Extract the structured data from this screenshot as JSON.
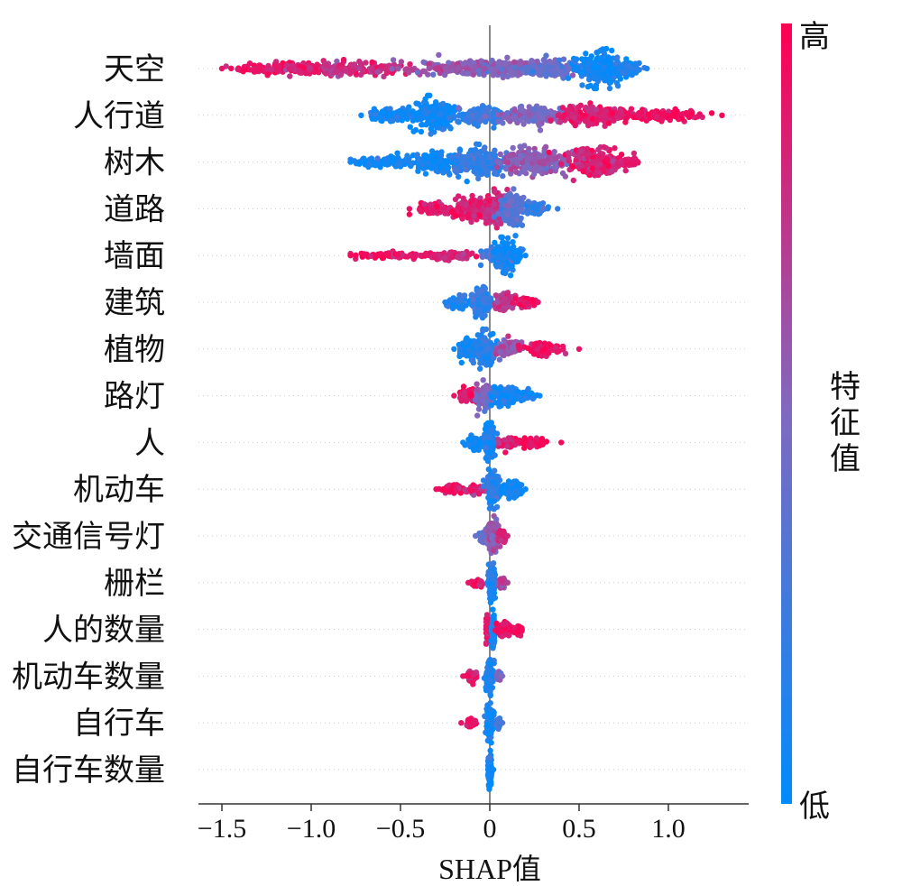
{
  "chart_data": {
    "type": "scatter",
    "subtype": "shap-beeswarm",
    "xlabel": "SHAP值",
    "xlim": [
      -1.6,
      1.45
    ],
    "xticks": [
      -1.5,
      -1.0,
      -0.5,
      0,
      0.5,
      1.0
    ],
    "xtick_labels": [
      "−1.5",
      "−1.0",
      "−0.5",
      "0",
      "0.5",
      "1.0"
    ],
    "zero_line": true,
    "colorbar": {
      "title": "特征值",
      "high_label": "高",
      "low_label": "低",
      "high_color": "#ff0052",
      "low_color": "#008bfb"
    },
    "features": [
      {
        "name": "天空",
        "min": -1.5,
        "max": 0.88,
        "clusters": [
          {
            "x": -1.15,
            "w": 0.3,
            "h": 0.35,
            "c": 0.9
          },
          {
            "x": -0.75,
            "w": 0.35,
            "h": 0.45,
            "c": 0.8
          },
          {
            "x": -0.2,
            "w": 0.3,
            "h": 0.45,
            "c": 0.6
          },
          {
            "x": 0.1,
            "w": 0.2,
            "h": 0.5,
            "c": 0.5
          },
          {
            "x": 0.35,
            "w": 0.15,
            "h": 0.55,
            "c": 0.4
          },
          {
            "x": 0.62,
            "w": 0.12,
            "h": 1.0,
            "c": 0.05
          },
          {
            "x": 0.78,
            "w": 0.06,
            "h": 0.4,
            "c": 0.1
          }
        ]
      },
      {
        "name": "人行道",
        "min": -0.72,
        "max": 1.3,
        "clusters": [
          {
            "x": -0.55,
            "w": 0.12,
            "h": 0.35,
            "c": 0.05
          },
          {
            "x": -0.3,
            "w": 0.12,
            "h": 1.0,
            "c": 0.05
          },
          {
            "x": -0.05,
            "w": 0.12,
            "h": 0.5,
            "c": 0.2
          },
          {
            "x": 0.25,
            "w": 0.18,
            "h": 0.55,
            "c": 0.5
          },
          {
            "x": 0.6,
            "w": 0.22,
            "h": 0.55,
            "c": 0.85
          },
          {
            "x": 1.0,
            "w": 0.22,
            "h": 0.3,
            "c": 0.95
          }
        ]
      },
      {
        "name": "树木",
        "min": -0.78,
        "max": 0.83,
        "clusters": [
          {
            "x": -0.6,
            "w": 0.15,
            "h": 0.3,
            "c": 0.05
          },
          {
            "x": -0.3,
            "w": 0.18,
            "h": 0.6,
            "c": 0.05
          },
          {
            "x": -0.05,
            "w": 0.12,
            "h": 0.85,
            "c": 0.2
          },
          {
            "x": 0.25,
            "w": 0.18,
            "h": 0.8,
            "c": 0.55
          },
          {
            "x": 0.58,
            "w": 0.15,
            "h": 0.85,
            "c": 0.85
          },
          {
            "x": 0.78,
            "w": 0.05,
            "h": 0.3,
            "c": 0.9
          }
        ]
      },
      {
        "name": "道路",
        "min": -0.45,
        "max": 0.38,
        "clusters": [
          {
            "x": -0.3,
            "w": 0.1,
            "h": 0.35,
            "c": 0.9
          },
          {
            "x": -0.1,
            "w": 0.1,
            "h": 0.7,
            "c": 0.85
          },
          {
            "x": 0.03,
            "w": 0.06,
            "h": 1.0,
            "c": 0.8
          },
          {
            "x": 0.13,
            "w": 0.07,
            "h": 0.9,
            "c": 0.35
          },
          {
            "x": 0.25,
            "w": 0.06,
            "h": 0.4,
            "c": 0.2
          }
        ]
      },
      {
        "name": "墙面",
        "min": -0.78,
        "max": 0.2,
        "clusters": [
          {
            "x": -0.55,
            "w": 0.2,
            "h": 0.2,
            "c": 0.95
          },
          {
            "x": -0.2,
            "w": 0.15,
            "h": 0.25,
            "c": 0.8
          },
          {
            "x": 0.02,
            "w": 0.06,
            "h": 0.4,
            "c": 0.3
          },
          {
            "x": 0.08,
            "w": 0.05,
            "h": 1.0,
            "c": 0.05
          },
          {
            "x": 0.15,
            "w": 0.03,
            "h": 0.35,
            "c": 0.05
          }
        ]
      },
      {
        "name": "建筑",
        "min": -0.25,
        "max": 0.27,
        "clusters": [
          {
            "x": -0.18,
            "w": 0.05,
            "h": 0.4,
            "c": 0.1
          },
          {
            "x": -0.05,
            "w": 0.05,
            "h": 0.85,
            "c": 0.2
          },
          {
            "x": 0.08,
            "w": 0.06,
            "h": 0.55,
            "c": 0.75
          },
          {
            "x": 0.2,
            "w": 0.05,
            "h": 0.3,
            "c": 0.9
          }
        ]
      },
      {
        "name": "植物",
        "min": -0.2,
        "max": 0.5,
        "clusters": [
          {
            "x": -0.12,
            "w": 0.06,
            "h": 0.6,
            "c": 0.05
          },
          {
            "x": -0.03,
            "w": 0.05,
            "h": 1.0,
            "c": 0.15
          },
          {
            "x": 0.1,
            "w": 0.08,
            "h": 0.5,
            "c": 0.6
          },
          {
            "x": 0.3,
            "w": 0.1,
            "h": 0.35,
            "c": 0.9
          }
        ]
      },
      {
        "name": "路灯",
        "min": -0.2,
        "max": 0.28,
        "clusters": [
          {
            "x": -0.12,
            "w": 0.05,
            "h": 0.4,
            "c": 0.9
          },
          {
            "x": -0.03,
            "w": 0.04,
            "h": 0.9,
            "c": 0.5
          },
          {
            "x": 0.08,
            "w": 0.07,
            "h": 0.6,
            "c": 0.1
          },
          {
            "x": 0.2,
            "w": 0.05,
            "h": 0.3,
            "c": 0.05
          }
        ]
      },
      {
        "name": "人",
        "min": -0.15,
        "max": 0.4,
        "clusters": [
          {
            "x": -0.08,
            "w": 0.04,
            "h": 0.4,
            "c": 0.05
          },
          {
            "x": 0.0,
            "w": 0.03,
            "h": 1.0,
            "c": 0.1
          },
          {
            "x": 0.1,
            "w": 0.06,
            "h": 0.4,
            "c": 0.85
          },
          {
            "x": 0.24,
            "w": 0.06,
            "h": 0.25,
            "c": 0.95
          }
        ]
      },
      {
        "name": "机动车",
        "min": -0.3,
        "max": 0.2,
        "clusters": [
          {
            "x": -0.2,
            "w": 0.06,
            "h": 0.25,
            "c": 0.95
          },
          {
            "x": -0.08,
            "w": 0.05,
            "h": 0.3,
            "c": 0.85
          },
          {
            "x": 0.02,
            "w": 0.04,
            "h": 1.0,
            "c": 0.15
          },
          {
            "x": 0.12,
            "w": 0.05,
            "h": 0.5,
            "c": 0.05
          }
        ]
      },
      {
        "name": "交通信号灯",
        "min": -0.08,
        "max": 0.1,
        "clusters": [
          {
            "x": -0.02,
            "w": 0.03,
            "h": 0.5,
            "c": 0.4
          },
          {
            "x": 0.02,
            "w": 0.03,
            "h": 1.0,
            "c": 0.6
          },
          {
            "x": 0.07,
            "w": 0.02,
            "h": 0.4,
            "c": 0.8
          }
        ]
      },
      {
        "name": "栅栏",
        "min": -0.12,
        "max": 0.1,
        "clusters": [
          {
            "x": -0.07,
            "w": 0.03,
            "h": 0.25,
            "c": 0.9
          },
          {
            "x": 0.01,
            "w": 0.02,
            "h": 1.0,
            "c": 0.1
          },
          {
            "x": 0.07,
            "w": 0.02,
            "h": 0.35,
            "c": 0.7
          }
        ]
      },
      {
        "name": "人的数量",
        "min": -0.02,
        "max": 0.18,
        "clusters": [
          {
            "x": -0.01,
            "w": 0.01,
            "h": 0.9,
            "c": 0.9
          },
          {
            "x": 0.02,
            "w": 0.01,
            "h": 1.0,
            "c": 0.05
          },
          {
            "x": 0.08,
            "w": 0.04,
            "h": 0.4,
            "c": 0.9
          },
          {
            "x": 0.16,
            "w": 0.02,
            "h": 0.25,
            "c": 0.95
          }
        ]
      },
      {
        "name": "机动车数量",
        "min": -0.15,
        "max": 0.07,
        "clusters": [
          {
            "x": -0.1,
            "w": 0.03,
            "h": 0.3,
            "c": 0.9
          },
          {
            "x": 0.0,
            "w": 0.02,
            "h": 1.0,
            "c": 0.1
          },
          {
            "x": 0.05,
            "w": 0.01,
            "h": 0.3,
            "c": 0.5
          }
        ]
      },
      {
        "name": "自行车",
        "min": -0.16,
        "max": 0.07,
        "clusters": [
          {
            "x": -0.1,
            "w": 0.03,
            "h": 0.2,
            "c": 0.9
          },
          {
            "x": 0.0,
            "w": 0.02,
            "h": 1.0,
            "c": 0.1
          },
          {
            "x": 0.05,
            "w": 0.01,
            "h": 0.3,
            "c": 0.3
          }
        ]
      },
      {
        "name": "自行车数量",
        "min": -0.01,
        "max": 0.02,
        "clusters": [
          {
            "x": 0.0,
            "w": 0.01,
            "h": 1.0,
            "c": 0.05
          }
        ]
      }
    ]
  }
}
